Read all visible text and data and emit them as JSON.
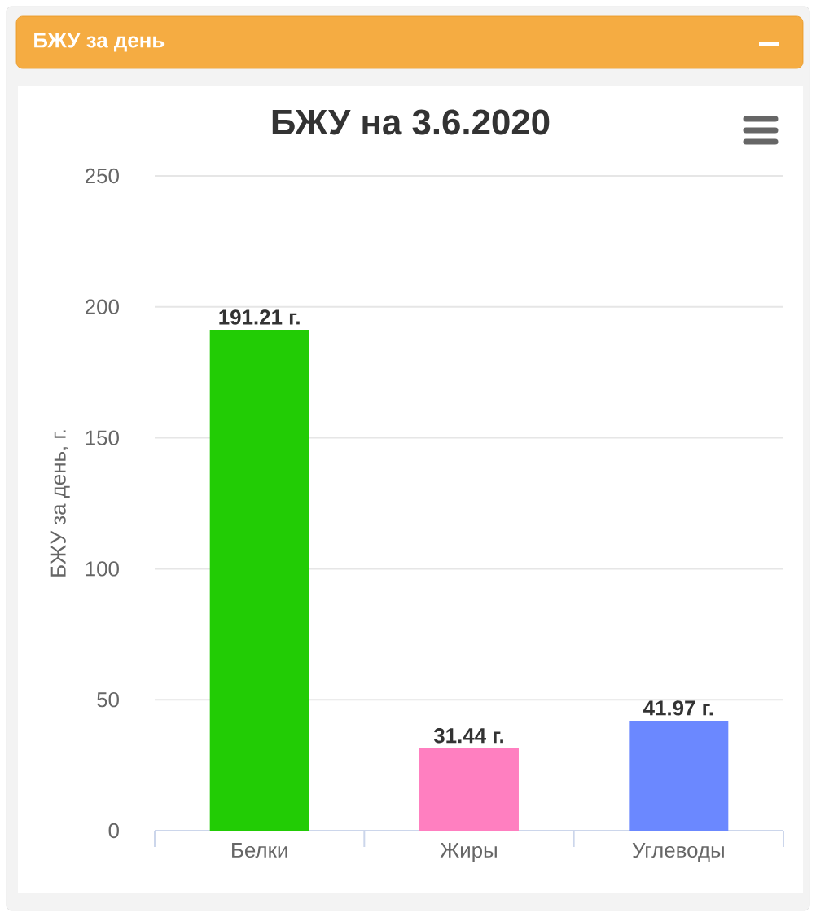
{
  "chart_data": {
    "type": "bar",
    "title": "БЖУ на 3.6.2020",
    "ylabel": "БЖУ за день, г.",
    "categories": [
      "Белки",
      "Жиры",
      "Углеводы"
    ],
    "values": [
      191.21,
      31.44,
      41.97
    ],
    "colors": [
      "#22cc05",
      "#ff7fc0",
      "#6b88ff"
    ],
    "value_labels": [
      "191.21 г.",
      "31.44 г.",
      "41.97 г."
    ],
    "ylim": [
      0,
      250
    ],
    "yticks": [
      0,
      50,
      100,
      150,
      200,
      250
    ],
    "grid": "y",
    "annotations": [
      "БЖУ за день"
    ]
  }
}
